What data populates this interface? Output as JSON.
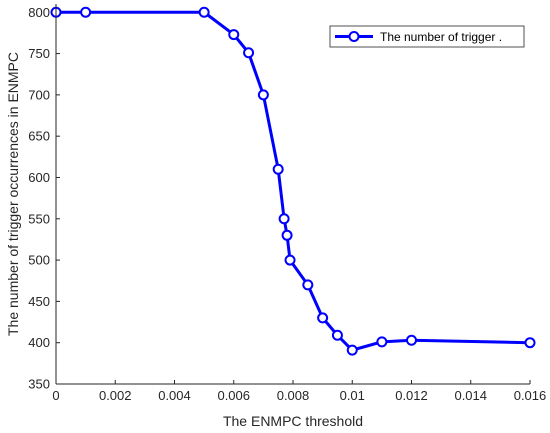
{
  "chart_data": {
    "type": "line",
    "title": "",
    "xlabel": "The ENMPC threshold",
    "ylabel": "The number of trigger occurrences in ENMPC",
    "xlim": [
      0,
      0.016
    ],
    "ylim": [
      350,
      810
    ],
    "x_ticks": [
      0,
      0.002,
      0.004,
      0.006,
      0.008,
      0.01,
      0.012,
      0.014,
      0.016
    ],
    "x_tick_labels": [
      "0",
      "0.002",
      "0.004",
      "0.006",
      "0.008",
      "0.01",
      "0.012",
      "0.014",
      "0.016"
    ],
    "y_ticks": [
      350,
      400,
      450,
      500,
      550,
      600,
      650,
      700,
      750,
      800
    ],
    "y_tick_labels": [
      "350",
      "400",
      "450",
      "500",
      "550",
      "600",
      "650",
      "700",
      "750",
      "800"
    ],
    "grid": false,
    "legend_position": "top-right",
    "series": [
      {
        "name": "The number of trigger .",
        "color": "#0000ff",
        "marker": "circle",
        "x": [
          0,
          0.001,
          0.005,
          0.006,
          0.0065,
          0.007,
          0.0075,
          0.0077,
          0.0078,
          0.0079,
          0.0085,
          0.009,
          0.0095,
          0.01,
          0.011,
          0.012,
          0.016
        ],
        "y": [
          800,
          800,
          800,
          773,
          751,
          700,
          610,
          550,
          530,
          500,
          470,
          430,
          409,
          391,
          401,
          403,
          400
        ]
      }
    ]
  }
}
